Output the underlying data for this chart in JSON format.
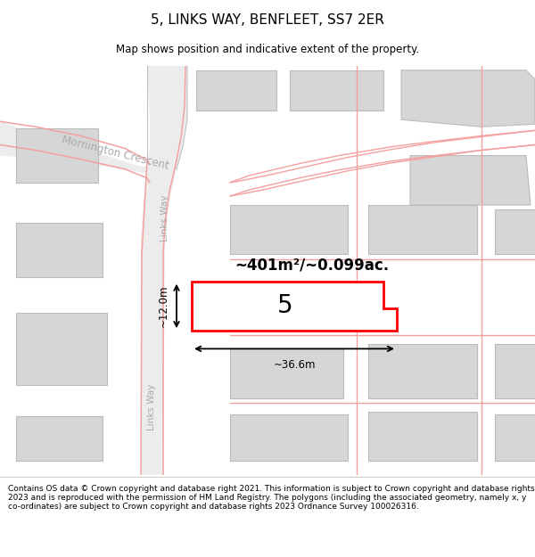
{
  "title": "5, LINKS WAY, BENFLEET, SS7 2ER",
  "subtitle": "Map shows position and indicative extent of the property.",
  "footer": "Contains OS data © Crown copyright and database right 2021. This information is subject to Crown copyright and database rights 2023 and is reproduced with the permission of HM Land Registry. The polygons (including the associated geometry, namely x, y co-ordinates) are subject to Crown copyright and database rights 2023 Ordnance Survey 100026316.",
  "area_text": "~401m²/~0.099ac.",
  "number_text": "5",
  "width_text": "~36.6m",
  "height_text": "~12.0m",
  "street1": "Mornington Crescent",
  "street2_upper": "Links Way",
  "street2_lower": "Links Way",
  "bg_color": "#ffffff",
  "road_fill": "#ececec",
  "building_fill": "#d6d6d6",
  "building_stroke": "#bbbbbb",
  "plot_stroke": "#ff0000",
  "pink_color": "#f5a0a0",
  "gray_line": "#c8c8c8",
  "label_color": "#aaaaaa",
  "title_fontsize": 11,
  "subtitle_fontsize": 8.5,
  "footer_fontsize": 6.5
}
